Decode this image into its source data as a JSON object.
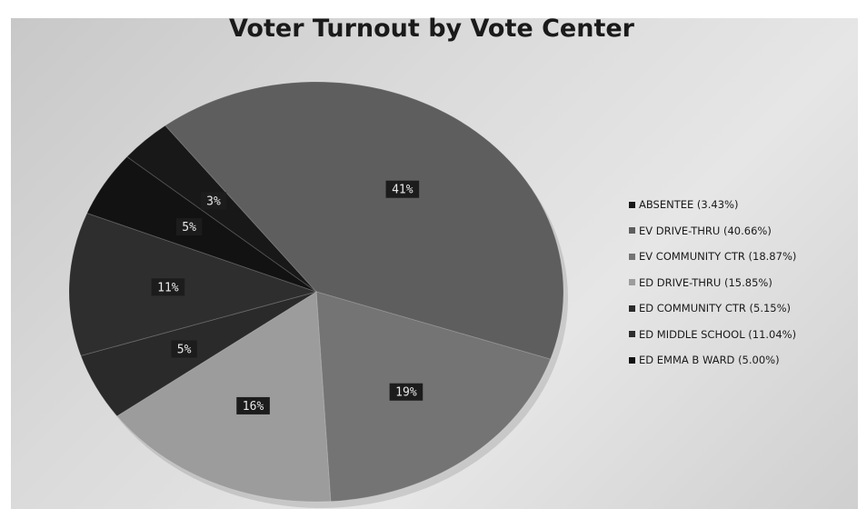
{
  "chart_data": {
    "type": "pie",
    "title": "Voter Turnout by Vote Center",
    "legend_position": "right",
    "slices": [
      {
        "name": "ABSENTEE (3.43%)",
        "value": 3.43,
        "label": "3%",
        "color": "#181818"
      },
      {
        "name": "EV DRIVE-THRU (40.66%)",
        "value": 40.66,
        "label": "41%",
        "color": "#5e5e5e"
      },
      {
        "name": "EV COMMUNITY CTR (18.87%)",
        "value": 18.87,
        "label": "19%",
        "color": "#747474"
      },
      {
        "name": "ED DRIVE-THRU (15.85%)",
        "value": 15.85,
        "label": "16%",
        "color": "#9c9c9c"
      },
      {
        "name": "ED COMMUNITY CTR (5.15%)",
        "value": 5.15,
        "label": "5%",
        "color": "#2a2a2a"
      },
      {
        "name": "ED MIDDLE SCHOOL (11.04%)",
        "value": 11.04,
        "label": "11%",
        "color": "#2e2e2e"
      },
      {
        "name": "ED EMMA B WARD (5.00%)",
        "value": 5.0,
        "label": "5%",
        "color": "#121212"
      }
    ]
  }
}
